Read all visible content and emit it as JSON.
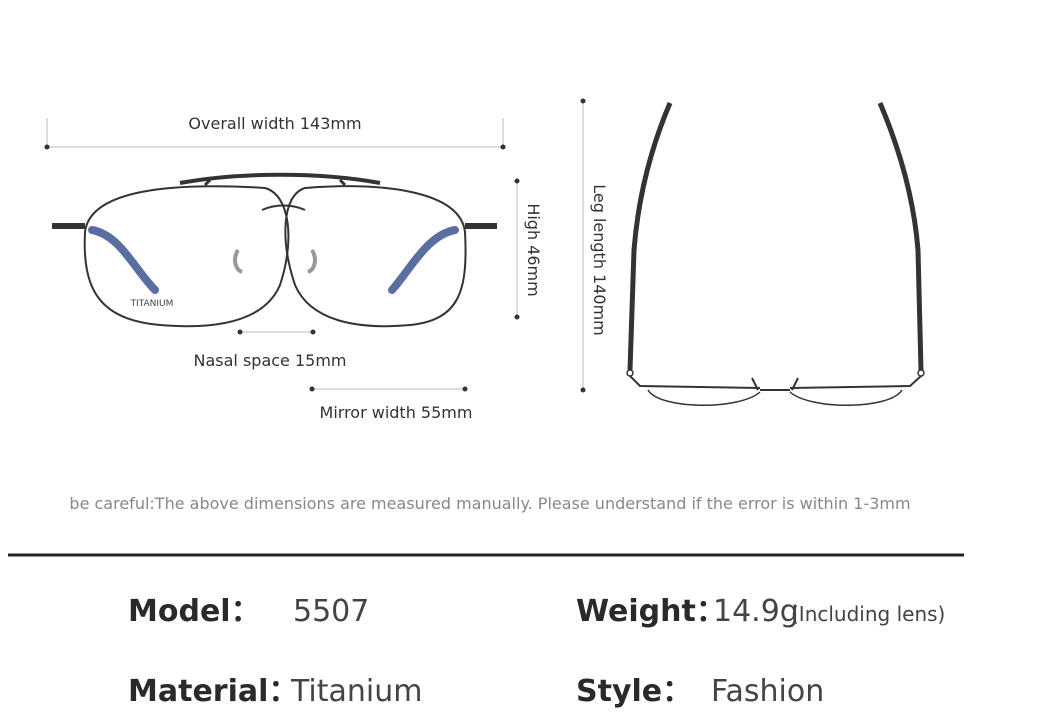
{
  "dimensions": {
    "overall_width": "Overall width 143mm",
    "high": "High 46mm",
    "nasal_space": "Nasal space 15mm",
    "mirror_width": "Mirror width 55mm",
    "leg_length": "Leg length 140mm",
    "lens_mark": "TITANIUM"
  },
  "note": "be careful:The above dimensions are measured manually. Please understand if the error is within 1-3mm",
  "specs": {
    "model": {
      "label": "Model：",
      "value": "5507"
    },
    "weight": {
      "label": "Weight：",
      "value": "14.9g",
      "detail": "(Including lens)"
    },
    "material": {
      "label": "Material：",
      "value": "Titanium"
    },
    "style": {
      "label": "Style：",
      "value": "Fashion"
    }
  }
}
